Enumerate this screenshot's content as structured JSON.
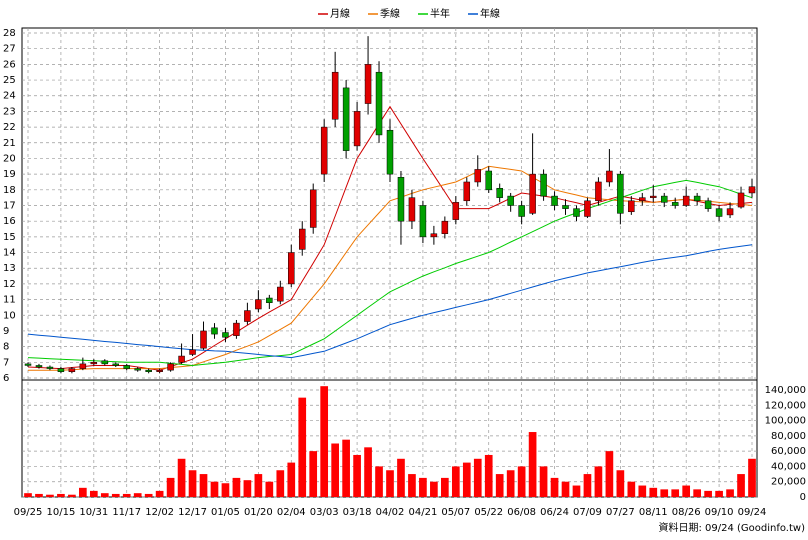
{
  "chart_data": {
    "type": "candlestick",
    "x": [
      "09/25",
      null,
      null,
      "10/15",
      null,
      null,
      "10/31",
      null,
      null,
      "11/17",
      null,
      null,
      "12/02",
      null,
      null,
      "12/17",
      null,
      null,
      "01/05",
      null,
      null,
      "01/20",
      null,
      null,
      "02/04",
      null,
      null,
      "03/03",
      null,
      null,
      "03/18",
      null,
      null,
      "04/02",
      null,
      null,
      "04/21",
      null,
      null,
      "05/07",
      null,
      null,
      "05/22",
      null,
      null,
      "06/08",
      null,
      null,
      "06/24",
      null,
      null,
      "07/09",
      null,
      null,
      "07/27",
      null,
      null,
      "08/11",
      null,
      null,
      "08/26",
      null,
      null,
      "09/10",
      null,
      null,
      "09/24"
    ],
    "ohlc": [
      [
        6.9,
        7.0,
        6.7,
        6.8
      ],
      [
        6.8,
        6.9,
        6.6,
        6.7
      ],
      [
        6.7,
        6.8,
        6.5,
        6.6
      ],
      [
        6.6,
        6.7,
        6.3,
        6.4
      ],
      [
        6.4,
        6.7,
        6.3,
        6.6
      ],
      [
        6.6,
        7.3,
        6.5,
        6.9
      ],
      [
        6.9,
        7.2,
        6.8,
        7.0
      ],
      [
        7.1,
        7.2,
        6.8,
        6.9
      ],
      [
        6.9,
        7.0,
        6.7,
        6.8
      ],
      [
        6.8,
        6.9,
        6.5,
        6.6
      ],
      [
        6.6,
        6.7,
        6.4,
        6.5
      ],
      [
        6.5,
        6.6,
        6.3,
        6.4
      ],
      [
        6.4,
        6.6,
        6.3,
        6.5
      ],
      [
        6.5,
        7.0,
        6.4,
        6.9
      ],
      [
        7.0,
        8.2,
        6.9,
        7.4
      ],
      [
        7.5,
        8.8,
        7.4,
        7.8
      ],
      [
        7.9,
        9.6,
        7.8,
        9.0
      ],
      [
        9.2,
        9.5,
        8.5,
        8.8
      ],
      [
        8.9,
        9.2,
        8.3,
        8.6
      ],
      [
        8.7,
        9.7,
        8.5,
        9.5
      ],
      [
        9.6,
        10.8,
        9.4,
        10.3
      ],
      [
        10.4,
        11.6,
        10.2,
        11.0
      ],
      [
        11.1,
        11.3,
        10.4,
        10.8
      ],
      [
        10.9,
        12.2,
        10.7,
        11.8
      ],
      [
        12.0,
        14.5,
        11.8,
        14.0
      ],
      [
        14.2,
        16.0,
        13.8,
        15.5
      ],
      [
        15.6,
        18.4,
        15.2,
        18.0
      ],
      [
        19.0,
        22.5,
        18.5,
        22.0
      ],
      [
        22.5,
        26.8,
        22.0,
        25.5
      ],
      [
        24.5,
        25.0,
        20.0,
        20.5
      ],
      [
        20.8,
        23.6,
        20.5,
        23.0
      ],
      [
        23.5,
        27.8,
        22.8,
        26.0
      ],
      [
        25.5,
        26.2,
        21.0,
        21.5
      ],
      [
        21.8,
        22.5,
        18.5,
        19.0
      ],
      [
        18.8,
        19.2,
        14.5,
        16.0
      ],
      [
        16.0,
        18.0,
        15.5,
        17.5
      ],
      [
        17.0,
        17.3,
        14.6,
        15.0
      ],
      [
        15.0,
        15.7,
        14.5,
        15.2
      ],
      [
        15.2,
        16.3,
        14.9,
        16.0
      ],
      [
        16.1,
        17.6,
        15.8,
        17.2
      ],
      [
        17.3,
        18.8,
        17.0,
        18.5
      ],
      [
        18.5,
        20.2,
        18.2,
        19.3
      ],
      [
        19.2,
        19.5,
        17.8,
        18.0
      ],
      [
        18.1,
        18.4,
        17.2,
        17.5
      ],
      [
        17.6,
        17.8,
        16.6,
        17.0
      ],
      [
        17.0,
        17.3,
        15.8,
        16.3
      ],
      [
        16.5,
        21.6,
        16.4,
        19.0
      ],
      [
        19.0,
        19.3,
        17.3,
        17.6
      ],
      [
        17.6,
        17.9,
        16.7,
        17.0
      ],
      [
        17.0,
        17.4,
        16.4,
        16.8
      ],
      [
        16.8,
        17.0,
        16.0,
        16.3
      ],
      [
        16.3,
        17.5,
        16.2,
        17.3
      ],
      [
        17.3,
        18.8,
        17.0,
        18.5
      ],
      [
        18.5,
        20.6,
        18.2,
        19.2
      ],
      [
        19.0,
        19.2,
        15.8,
        16.5
      ],
      [
        16.6,
        17.6,
        16.4,
        17.3
      ],
      [
        17.3,
        17.8,
        17.0,
        17.5
      ],
      [
        17.5,
        18.3,
        17.2,
        17.6
      ],
      [
        17.6,
        17.8,
        16.9,
        17.2
      ],
      [
        17.2,
        17.5,
        16.8,
        17.0
      ],
      [
        17.0,
        18.2,
        16.9,
        17.6
      ],
      [
        17.6,
        17.8,
        17.0,
        17.3
      ],
      [
        17.3,
        17.5,
        16.6,
        16.8
      ],
      [
        16.8,
        17.0,
        16.0,
        16.3
      ],
      [
        16.4,
        17.2,
        16.2,
        16.8
      ],
      [
        16.9,
        18.2,
        16.8,
        17.8
      ],
      [
        17.8,
        18.7,
        17.5,
        18.2
      ]
    ],
    "up_color": "#e00000",
    "down_color": "#00a000",
    "series": [
      {
        "name": "月線",
        "color": "#d00000",
        "values": [
          6.7,
          6.67,
          6.63,
          6.6,
          6.67,
          6.73,
          6.8,
          6.8,
          6.8,
          6.8,
          6.7,
          6.6,
          6.5,
          6.73,
          6.97,
          7.2,
          7.63,
          8.07,
          8.5,
          8.93,
          9.37,
          9.8,
          10.2,
          10.6,
          11.0,
          12.17,
          13.33,
          14.5,
          16.33,
          18.17,
          20.0,
          21.1,
          22.2,
          23.3,
          22.2,
          21.1,
          20.0,
          18.93,
          17.87,
          16.8,
          16.8,
          16.8,
          16.8,
          17.13,
          17.47,
          17.8,
          17.7,
          17.6,
          17.5,
          17.33,
          17.17,
          17.0,
          17.2,
          17.4,
          17.6,
          17.47,
          17.33,
          17.2,
          17.27,
          17.33,
          17.4,
          17.27,
          17.13,
          17.0,
          17.07,
          17.13,
          17.2
        ]
      },
      {
        "name": "季線",
        "color": "#ee7700",
        "values": [
          6.5,
          6.5,
          6.5,
          6.5,
          6.53,
          6.57,
          6.6,
          6.6,
          6.6,
          6.6,
          6.6,
          6.6,
          6.6,
          6.67,
          6.73,
          6.8,
          7.03,
          7.27,
          7.5,
          7.77,
          8.03,
          8.3,
          8.7,
          9.1,
          9.5,
          10.33,
          11.17,
          12.0,
          13.0,
          14.0,
          15.0,
          15.77,
          16.53,
          17.3,
          17.53,
          17.77,
          18.0,
          18.17,
          18.33,
          18.5,
          18.83,
          19.17,
          19.5,
          19.4,
          19.3,
          19.2,
          18.8,
          18.4,
          18.0,
          17.83,
          17.67,
          17.5,
          17.43,
          17.37,
          17.3,
          17.27,
          17.23,
          17.2,
          17.27,
          17.33,
          17.4,
          17.33,
          17.27,
          17.2,
          17.13,
          17.07,
          17.0
        ]
      },
      {
        "name": "半年",
        "color": "#00cc00",
        "values": [
          7.3,
          7.27,
          7.23,
          7.2,
          7.17,
          7.13,
          7.1,
          7.07,
          7.03,
          7.0,
          7.0,
          7.0,
          7.0,
          6.93,
          6.87,
          6.8,
          6.87,
          6.93,
          7.0,
          7.1,
          7.2,
          7.3,
          7.37,
          7.43,
          7.5,
          7.83,
          8.17,
          8.5,
          9.0,
          9.5,
          10.0,
          10.5,
          11.0,
          11.5,
          11.83,
          12.17,
          12.5,
          12.77,
          13.03,
          13.3,
          13.53,
          13.77,
          14.0,
          14.33,
          14.67,
          15.0,
          15.33,
          15.67,
          16.0,
          16.27,
          16.53,
          16.8,
          17.03,
          17.27,
          17.5,
          17.73,
          17.97,
          18.2,
          18.33,
          18.47,
          18.6,
          18.47,
          18.33,
          18.2,
          17.97,
          17.73,
          17.5
        ]
      },
      {
        "name": "年線",
        "color": "#0055cc",
        "values": [
          8.8,
          8.73,
          8.67,
          8.6,
          8.53,
          8.47,
          8.4,
          8.33,
          8.27,
          8.2,
          8.13,
          8.07,
          8.0,
          7.93,
          7.87,
          7.8,
          7.77,
          7.73,
          7.7,
          7.63,
          7.57,
          7.5,
          7.43,
          7.37,
          7.3,
          7.43,
          7.57,
          7.7,
          7.97,
          8.23,
          8.5,
          8.8,
          9.1,
          9.4,
          9.6,
          9.8,
          10.0,
          10.17,
          10.33,
          10.5,
          10.67,
          10.83,
          11.0,
          11.2,
          11.4,
          11.6,
          11.8,
          12.0,
          12.2,
          12.37,
          12.53,
          12.7,
          12.83,
          12.97,
          13.1,
          13.23,
          13.37,
          13.5,
          13.6,
          13.7,
          13.8,
          13.93,
          14.07,
          14.2,
          14.3,
          14.4,
          14.5
        ]
      }
    ],
    "ylim": [
      6,
      28
    ],
    "yticks": [
      6,
      7,
      8,
      9,
      10,
      11,
      12,
      13,
      14,
      15,
      16,
      17,
      18,
      19,
      20,
      21,
      22,
      23,
      24,
      25,
      26,
      27,
      28
    ],
    "volume": {
      "color": "#ff0000",
      "values": [
        5000,
        4000,
        3000,
        4000,
        3000,
        12000,
        8000,
        5000,
        4000,
        4000,
        5000,
        4000,
        8000,
        25000,
        50000,
        35000,
        30000,
        20000,
        18000,
        25000,
        22000,
        30000,
        20000,
        35000,
        45000,
        130000,
        60000,
        145000,
        70000,
        75000,
        55000,
        65000,
        40000,
        35000,
        50000,
        30000,
        25000,
        20000,
        25000,
        40000,
        45000,
        50000,
        55000,
        30000,
        35000,
        40000,
        85000,
        40000,
        25000,
        20000,
        15000,
        30000,
        40000,
        60000,
        35000,
        20000,
        15000,
        12000,
        10000,
        10000,
        15000,
        10000,
        8000,
        8000,
        10000,
        30000,
        50000
      ],
      "ylim": [
        0,
        140000
      ],
      "yticks": [
        0,
        {
          "value": 20000,
          "label": "20,000"
        },
        {
          "value": 40000,
          "label": "40,000"
        },
        {
          "value": 60000,
          "label": "60,000"
        },
        {
          "value": 80000,
          "label": "80,000"
        },
        {
          "value": 100000,
          "label": "100,000"
        },
        {
          "value": 120000,
          "label": "120,000"
        },
        {
          "value": 140000,
          "label": "140,000"
        }
      ]
    },
    "grid": true,
    "footnote": "資料日期: 09/24 (Goodinfo.tw)"
  }
}
